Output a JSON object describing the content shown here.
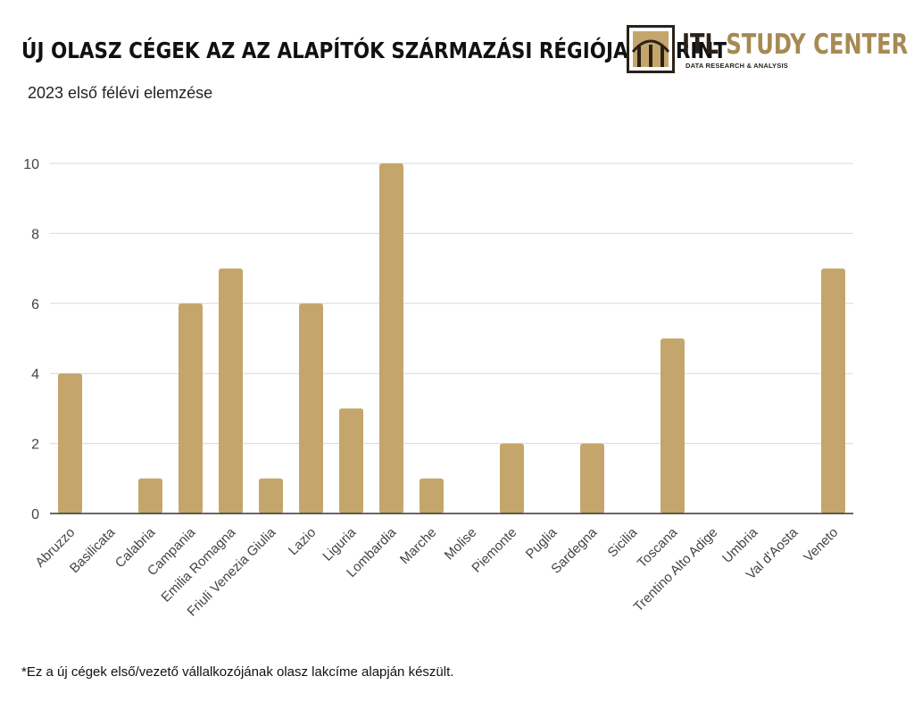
{
  "header": {
    "title": "ÚJ OLASZ CÉGEK AZ AZ ALAPÍTÓK SZÁRMAZÁSI RÉGIÓJA SZERINT",
    "subtitle": "2023 első félévi elemzése"
  },
  "logo": {
    "name_dark": "ITL",
    "name_gold": "STUDY CENTER",
    "tagline": "DATA RESEARCH & ANALYSIS",
    "colors": {
      "dark": "#2a2118",
      "gold": "#a68a52"
    }
  },
  "chart_data": {
    "type": "bar",
    "categories": [
      "Abruzzo",
      "Basilicata",
      "Calabria",
      "Campania",
      "Emilia Romagna",
      "Friuli Venezia Giulia",
      "Lazio",
      "Liguria",
      "Lombardia",
      "Marche",
      "Molise",
      "Piemonte",
      "Puglia",
      "Sardegna",
      "Sicilia",
      "Toscana",
      "Trentino Alto Adige",
      "Umbria",
      "Val d'Aosta",
      "Veneto"
    ],
    "values": [
      4,
      0,
      1,
      6,
      7,
      1,
      6,
      3,
      10,
      1,
      0,
      2,
      0,
      2,
      0,
      5,
      0,
      0,
      0,
      7
    ],
    "ylim": [
      0,
      10
    ],
    "yticks": [
      0,
      2,
      4,
      6,
      8,
      10
    ],
    "title": "",
    "xlabel": "",
    "ylabel": "",
    "grid": true,
    "bar_color": "#c4a66c"
  },
  "footnote": "*Ez a új cégek első/vezető vállalkozójának olasz lakcíme alapján készült."
}
